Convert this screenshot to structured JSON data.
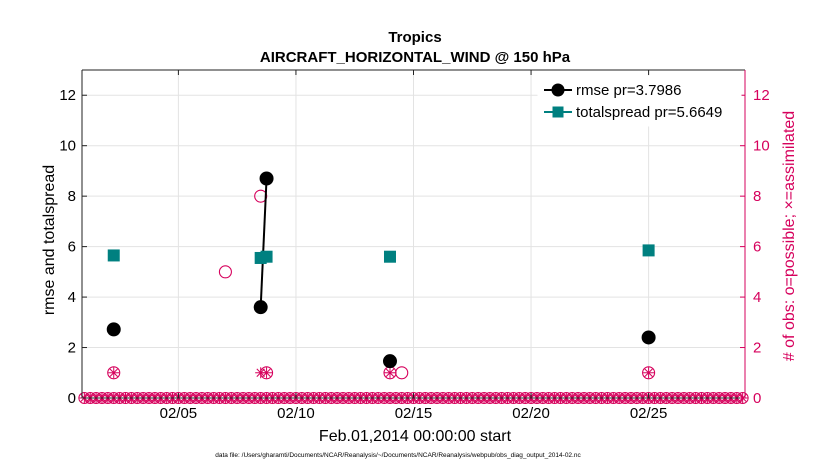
{
  "chart_data": {
    "type": "scatter",
    "title": "Tropics",
    "subtitle": "AIRCRAFT_HORIZONTAL_WIND @ 150 hPa",
    "xlabel": "Feb.01,2014 00:00:00 start",
    "ylabel": "rmse and totalspread",
    "y2label": "# of obs: o=possible; ×=assimilated",
    "footnote": "data file: /Users/gharamti/Documents/NCAR/Reanalysis/~/Documents/NCAR/Reanalysis/webpub/obs_diag_output_2014-02.nc",
    "xlim": [
      0.9,
      29.1
    ],
    "ylim": [
      0,
      13
    ],
    "y2lim": [
      0,
      13
    ],
    "x_ticks": [
      5,
      10,
      15,
      20,
      25
    ],
    "x_tick_labels": [
      "02/05",
      "02/10",
      "02/15",
      "02/20",
      "02/25"
    ],
    "y_ticks": [
      0,
      2,
      4,
      6,
      8,
      10,
      12
    ],
    "y2_ticks": [
      0,
      2,
      4,
      6,
      8,
      10,
      12
    ],
    "grid": true,
    "legend_position": "top-right",
    "series": [
      {
        "name": "rmse",
        "legend_label": "rmse pr=3.7986",
        "color": "#000000",
        "marker": "circle",
        "points": [
          [
            2.25,
            2.72
          ],
          [
            8.5,
            3.6
          ],
          [
            8.75,
            8.7
          ],
          [
            14.0,
            1.46
          ],
          [
            25.0,
            2.4
          ]
        ],
        "connected_segments": [
          [
            1,
            2
          ]
        ]
      },
      {
        "name": "totalspread",
        "legend_label": "totalspread pr=5.6649",
        "color": "#008080",
        "marker": "square",
        "points": [
          [
            2.25,
            5.65
          ],
          [
            8.5,
            5.55
          ],
          [
            8.75,
            5.6
          ],
          [
            14.0,
            5.6
          ],
          [
            25.0,
            5.85
          ]
        ],
        "connected_segments": [
          [
            1,
            2
          ]
        ]
      }
    ],
    "obs_possible": {
      "color": "#d6005c",
      "marker": "open-circle",
      "points": [
        [
          2.25,
          1
        ],
        [
          7.0,
          5
        ],
        [
          8.5,
          8
        ],
        [
          8.75,
          1
        ],
        [
          14.0,
          1
        ],
        [
          14.5,
          1
        ],
        [
          25.0,
          1
        ]
      ]
    },
    "obs_assimilated": {
      "color": "#d6005c",
      "marker": "star",
      "points": [
        [
          2.25,
          1
        ],
        [
          8.5,
          1
        ],
        [
          8.75,
          1
        ],
        [
          14.0,
          1
        ],
        [
          25.0,
          1
        ]
      ]
    },
    "zero_obs_marks": {
      "color": "#d6005c",
      "x_start": 1.0,
      "x_end": 29.0,
      "step": 0.25,
      "y": 0
    }
  }
}
